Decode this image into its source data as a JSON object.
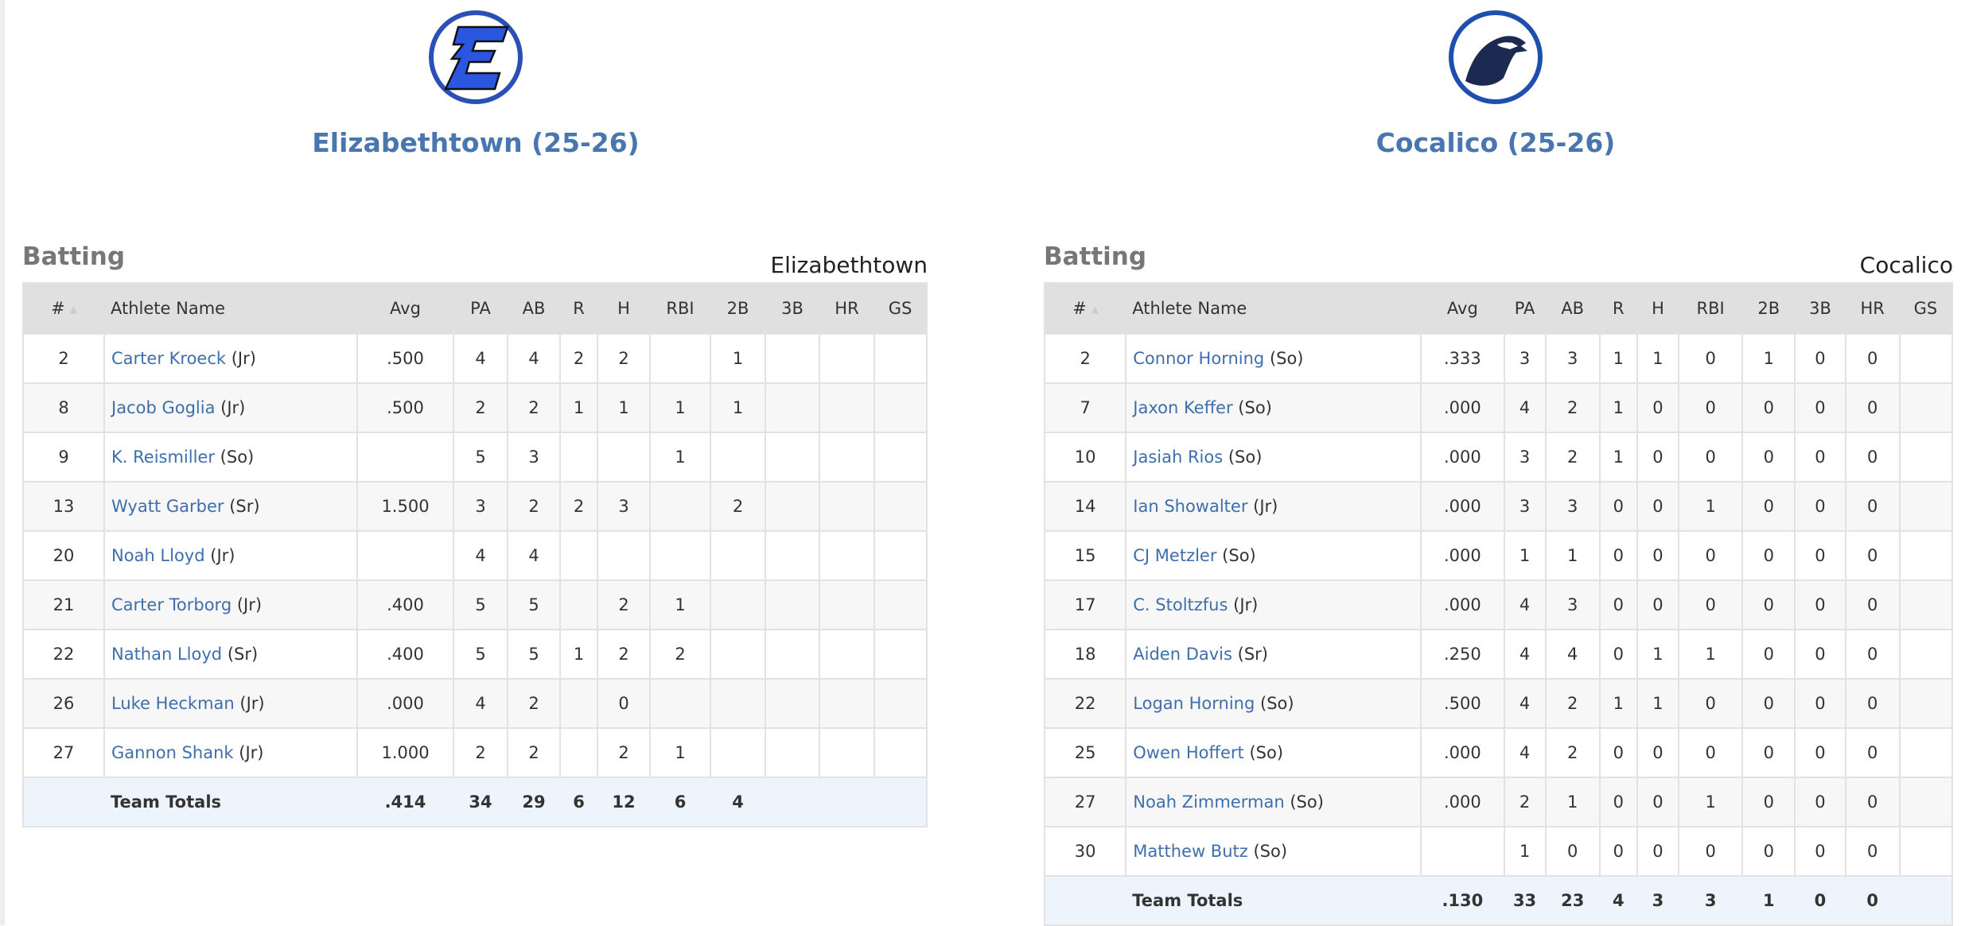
{
  "teams": [
    {
      "name": "Elizabethtown",
      "title": "Elizabethtown (25-26)",
      "logo": "elizabethtown-e-logo",
      "section_title": "Batting",
      "columns": [
        "#",
        "Athlete Name",
        "Avg",
        "PA",
        "AB",
        "R",
        "H",
        "RBI",
        "2B",
        "3B",
        "HR",
        "GS"
      ],
      "rows": [
        {
          "num": "2",
          "name": "Carter Kroeck",
          "class": "(Jr)",
          "stats": [
            ".500",
            "4",
            "4",
            "2",
            "2",
            "",
            "1",
            "",
            "",
            ""
          ]
        },
        {
          "num": "8",
          "name": "Jacob Goglia",
          "class": "(Jr)",
          "stats": [
            ".500",
            "2",
            "2",
            "1",
            "1",
            "1",
            "1",
            "",
            "",
            ""
          ]
        },
        {
          "num": "9",
          "name": "K. Reismiller",
          "class": "(So)",
          "stats": [
            "",
            "5",
            "3",
            "",
            "",
            "1",
            "",
            "",
            "",
            ""
          ]
        },
        {
          "num": "13",
          "name": "Wyatt Garber",
          "class": "(Sr)",
          "stats": [
            "1.500",
            "3",
            "2",
            "2",
            "3",
            "",
            "2",
            "",
            "",
            ""
          ]
        },
        {
          "num": "20",
          "name": "Noah Lloyd",
          "class": "(Jr)",
          "stats": [
            "",
            "4",
            "4",
            "",
            "",
            "",
            "",
            "",
            "",
            ""
          ]
        },
        {
          "num": "21",
          "name": "Carter Torborg",
          "class": "(Jr)",
          "stats": [
            ".400",
            "5",
            "5",
            "",
            "2",
            "1",
            "",
            "",
            "",
            ""
          ]
        },
        {
          "num": "22",
          "name": "Nathan Lloyd",
          "class": "(Sr)",
          "stats": [
            ".400",
            "5",
            "5",
            "1",
            "2",
            "2",
            "",
            "",
            "",
            ""
          ]
        },
        {
          "num": "26",
          "name": "Luke Heckman",
          "class": "(Jr)",
          "stats": [
            ".000",
            "4",
            "2",
            "",
            "0",
            "",
            "",
            "",
            "",
            ""
          ]
        },
        {
          "num": "27",
          "name": "Gannon Shank",
          "class": "(Jr)",
          "stats": [
            "1.000",
            "2",
            "2",
            "",
            "2",
            "1",
            "",
            "",
            "",
            ""
          ]
        }
      ],
      "totals": {
        "label": "Team Totals",
        "stats": [
          ".414",
          "34",
          "29",
          "6",
          "12",
          "6",
          "4",
          "",
          "",
          ""
        ]
      }
    },
    {
      "name": "Cocalico",
      "title": "Cocalico (25-26)",
      "logo": "cocalico-eagle-logo",
      "section_title": "Batting",
      "columns": [
        "#",
        "Athlete Name",
        "Avg",
        "PA",
        "AB",
        "R",
        "H",
        "RBI",
        "2B",
        "3B",
        "HR",
        "GS"
      ],
      "rows": [
        {
          "num": "2",
          "name": "Connor Horning",
          "class": "(So)",
          "stats": [
            ".333",
            "3",
            "3",
            "1",
            "1",
            "0",
            "1",
            "0",
            "0",
            ""
          ]
        },
        {
          "num": "7",
          "name": "Jaxon Keffer",
          "class": "(So)",
          "stats": [
            ".000",
            "4",
            "2",
            "1",
            "0",
            "0",
            "0",
            "0",
            "0",
            ""
          ]
        },
        {
          "num": "10",
          "name": "Jasiah Rios",
          "class": "(So)",
          "stats": [
            ".000",
            "3",
            "2",
            "1",
            "0",
            "0",
            "0",
            "0",
            "0",
            ""
          ]
        },
        {
          "num": "14",
          "name": "Ian Showalter",
          "class": "(Jr)",
          "stats": [
            ".000",
            "3",
            "3",
            "0",
            "0",
            "1",
            "0",
            "0",
            "0",
            ""
          ]
        },
        {
          "num": "15",
          "name": "CJ Metzler",
          "class": "(So)",
          "stats": [
            ".000",
            "1",
            "1",
            "0",
            "0",
            "0",
            "0",
            "0",
            "0",
            ""
          ]
        },
        {
          "num": "17",
          "name": "C. Stoltzfus",
          "class": "(Jr)",
          "stats": [
            ".000",
            "4",
            "3",
            "0",
            "0",
            "0",
            "0",
            "0",
            "0",
            ""
          ]
        },
        {
          "num": "18",
          "name": "Aiden Davis",
          "class": "(Sr)",
          "stats": [
            ".250",
            "4",
            "4",
            "0",
            "1",
            "1",
            "0",
            "0",
            "0",
            ""
          ]
        },
        {
          "num": "22",
          "name": "Logan Horning",
          "class": "(So)",
          "stats": [
            ".500",
            "4",
            "2",
            "1",
            "1",
            "0",
            "0",
            "0",
            "0",
            ""
          ]
        },
        {
          "num": "25",
          "name": "Owen Hoffert",
          "class": "(So)",
          "stats": [
            ".000",
            "4",
            "2",
            "0",
            "0",
            "0",
            "0",
            "0",
            "0",
            ""
          ]
        },
        {
          "num": "27",
          "name": "Noah Zimmerman",
          "class": "(So)",
          "stats": [
            ".000",
            "2",
            "1",
            "0",
            "0",
            "1",
            "0",
            "0",
            "0",
            ""
          ]
        },
        {
          "num": "30",
          "name": "Matthew Butz",
          "class": "(So)",
          "stats": [
            "",
            "1",
            "0",
            "0",
            "0",
            "0",
            "0",
            "0",
            "0",
            ""
          ]
        }
      ],
      "totals": {
        "label": "Team Totals",
        "stats": [
          ".130",
          "33",
          "23",
          "4",
          "3",
          "3",
          "1",
          "0",
          "0",
          ""
        ]
      }
    }
  ],
  "colors": {
    "link": "#3e6eac",
    "title": "#4a76b0",
    "header_bg": "#e0e0e0",
    "totals_bg": "#eef4fb"
  }
}
